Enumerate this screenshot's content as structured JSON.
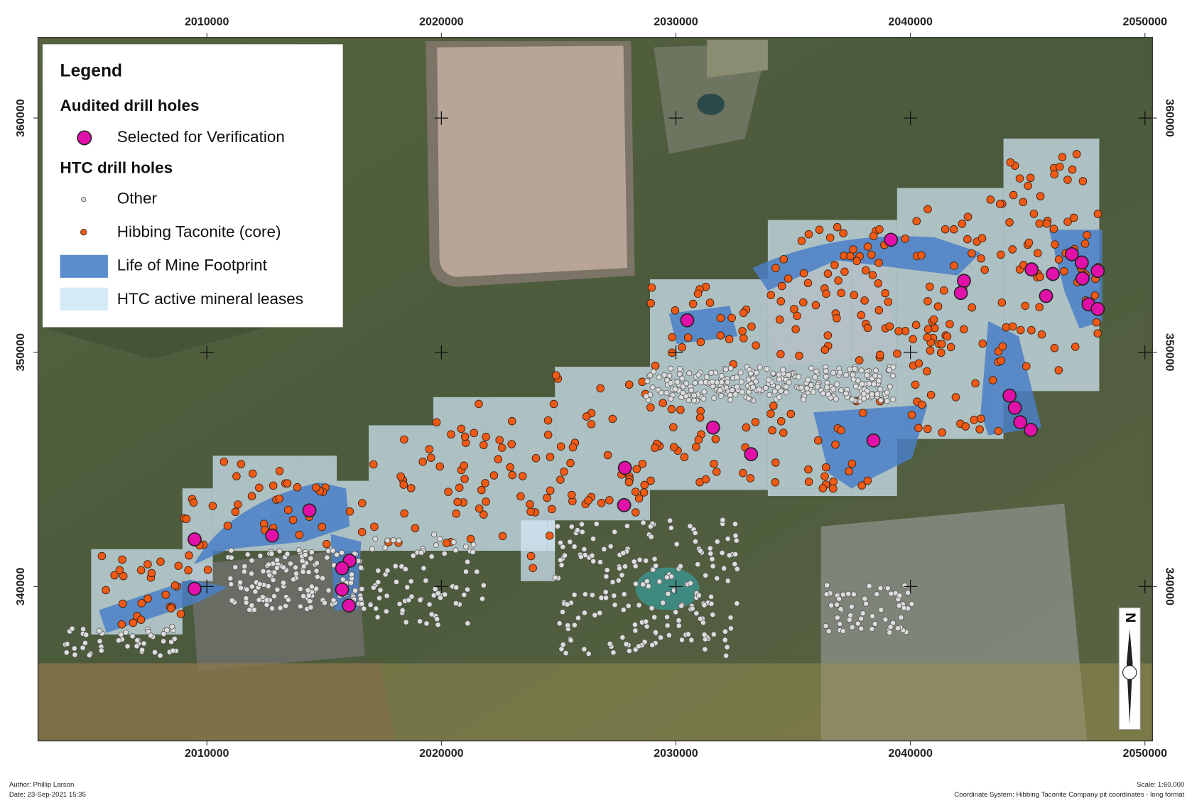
{
  "map": {
    "xlim": [
      2002800,
      2050320
    ],
    "ylim": [
      333410,
      363440
    ],
    "xticks": [
      2010000,
      2020000,
      2030000,
      2040000,
      2050000
    ],
    "yticks": [
      340000,
      350000,
      360000
    ]
  },
  "legend": {
    "title": "Legend",
    "groups": [
      {
        "heading": "Audited drill holes",
        "items": [
          "Selected for Verification"
        ]
      },
      {
        "heading": "HTC drill holes",
        "items": [
          "Other",
          "Hibbing Taconite (core)",
          "Life of Mine Footprint",
          "HTC active mineral leases"
        ]
      }
    ]
  },
  "north_arrow": "N",
  "footer": {
    "author": "Author: Phillip Larson",
    "date": "Date: 23-Sep-2021 15:35",
    "scale": "Scale: 1:60,000",
    "coordinate_system": "Coordinate System: Hibbing Taconite Company pit coordinates - long format"
  }
}
